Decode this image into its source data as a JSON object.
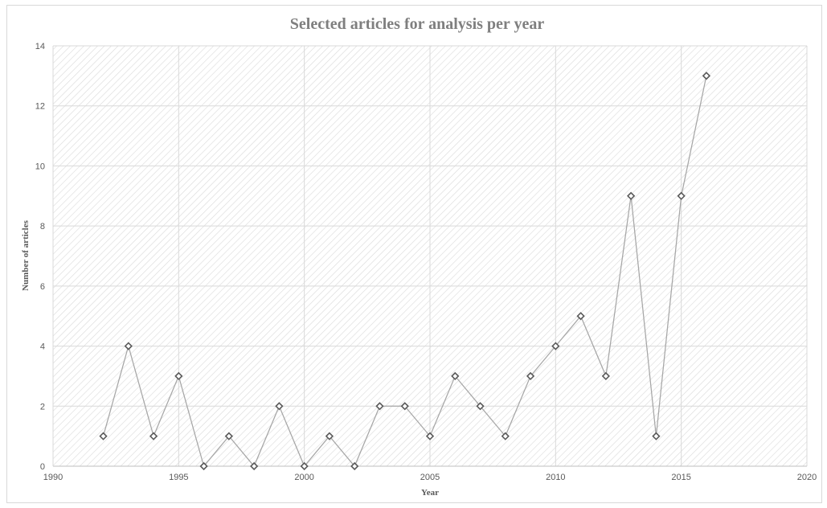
{
  "chart_data": {
    "type": "scatter",
    "title": "Selected articles for analysis per year",
    "xlabel": "Year",
    "ylabel": "Number of articles",
    "xlim": [
      1990,
      2020
    ],
    "ylim": [
      0,
      14
    ],
    "xticks": [
      1990,
      1995,
      2000,
      2005,
      2010,
      2015,
      2020
    ],
    "yticks": [
      0,
      2,
      4,
      6,
      8,
      10,
      12,
      14
    ],
    "grid": true,
    "legend": "none",
    "marker": "diamond",
    "colors": {
      "line": "#a6a6a6",
      "marker_edge": "#595959",
      "grid": "#d9d9d9",
      "hatch": "#d9d9d9",
      "title": "#7f7f7f"
    },
    "series": [
      {
        "x": [
          1992,
          1993,
          1994,
          1995,
          1996,
          1997,
          1998,
          1999,
          2000,
          2001,
          2002,
          2003,
          2004,
          2005,
          2006,
          2007,
          2008,
          2009,
          2010,
          2011,
          2012,
          2013,
          2014,
          2015,
          2016
        ],
        "y": [
          1,
          4,
          1,
          3,
          0,
          1,
          0,
          2,
          0,
          1,
          0,
          2,
          2,
          1,
          3,
          2,
          1,
          3,
          4,
          5,
          3,
          9,
          1,
          9,
          13
        ]
      }
    ]
  }
}
